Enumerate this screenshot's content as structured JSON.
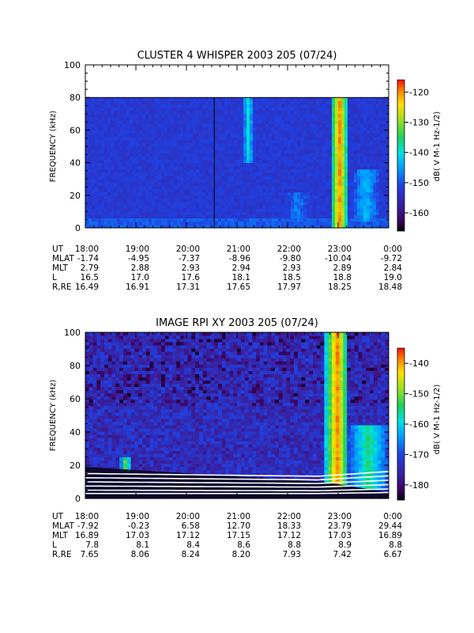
{
  "chart_data": [
    {
      "type": "heatmap",
      "title": "CLUSTER 4 WHISPER 2003 205 (07/24)",
      "ylabel": "FREQUENCY (kHz)",
      "ylim": [
        0,
        100
      ],
      "yticks": [
        0,
        20,
        40,
        60,
        80,
        100
      ],
      "x_tick_labels": [
        "18:00",
        "19:00",
        "20:00",
        "21:00",
        "22:00",
        "23:00",
        "0:00"
      ],
      "xlim_hours": [
        18,
        24
      ],
      "colorbar": {
        "label": "dB( V M⁻¹ Hz⁻¹ᐟ²)",
        "label_text": "dB( V M-1 Hz-1/2)",
        "ticks": [
          -160,
          -150,
          -140,
          -130,
          -120
        ],
        "range": [
          -166,
          -116
        ]
      },
      "data_top_khz": 80,
      "vertical_marker_hour": 20.55,
      "ephemeris": {
        "UT": [
          "18:00",
          "19:00",
          "20:00",
          "21:00",
          "22:00",
          "23:00",
          "0:00"
        ],
        "MLAT": [
          "-1.74",
          "-4.95",
          "-7.37",
          "-8.96",
          "-9.80",
          "-10.04",
          "-9.72"
        ],
        "MLT": [
          "2.79",
          "2.88",
          "2.93",
          "2.94",
          "2.93",
          "2.89",
          "2.84"
        ],
        "L": [
          "16.5",
          "17.0",
          "17.6",
          "18.1",
          "18.5",
          "18.8",
          "19.0"
        ],
        "R,RE": [
          "16.49",
          "16.91",
          "17.31",
          "17.65",
          "17.97",
          "18.25",
          "18.48"
        ]
      },
      "features": [
        {
          "desc": "intense broadband burst",
          "hours": [
            22.85,
            23.2
          ],
          "khz": [
            0,
            80
          ],
          "level_db": -120
        },
        {
          "desc": "emission patch",
          "hours": [
            23.2,
            23.9
          ],
          "khz": [
            5,
            35
          ],
          "level_db": -143
        },
        {
          "desc": "emission patch",
          "hours": [
            21.8,
            22.6
          ],
          "khz": [
            4,
            22
          ],
          "level_db": -147
        },
        {
          "desc": "bursts",
          "hours": [
            21.1,
            21.35
          ],
          "khz": [
            40,
            80
          ],
          "level_db": -140
        }
      ]
    },
    {
      "type": "heatmap",
      "title": "IMAGE RPI XY 2003 205 (07/24)",
      "ylabel": "FREQUENCY (kHz)",
      "ylim": [
        0,
        100
      ],
      "yticks": [
        0,
        20,
        40,
        60,
        80,
        100
      ],
      "x_tick_labels": [
        "18:00",
        "19:00",
        "20:00",
        "21:00",
        "22:00",
        "23:00",
        "0:00"
      ],
      "xlim_hours": [
        18,
        24
      ],
      "colorbar": {
        "label_text": "dB( V M-1 Hz-1/2)",
        "ticks": [
          -180,
          -170,
          -160,
          -150,
          -140
        ],
        "range": [
          -185,
          -135
        ]
      },
      "ephemeris": {
        "UT": [
          "18:00",
          "19:00",
          "20:00",
          "21:00",
          "22:00",
          "23:00",
          "0:00"
        ],
        "MLAT": [
          "-7.92",
          "-0.23",
          "6.58",
          "12.70",
          "18.33",
          "23.79",
          "29.44"
        ],
        "MLT": [
          "16.89",
          "17.03",
          "17.12",
          "17.15",
          "17.12",
          "17.03",
          "16.89"
        ],
        "L": [
          "7.8",
          "8.1",
          "8.4",
          "8.6",
          "8.8",
          "8.9",
          "8.8"
        ],
        "R,RE": [
          "7.65",
          "8.06",
          "8.24",
          "8.20",
          "7.93",
          "7.42",
          "6.67"
        ]
      },
      "features": [
        {
          "desc": "intense broadband burst",
          "hours": [
            22.75,
            23.2
          ],
          "khz": [
            5,
            100
          ],
          "level_db": -138
        },
        {
          "desc": "emission patch",
          "hours": [
            23.2,
            24.0
          ],
          "khz": [
            5,
            45
          ],
          "level_db": -155
        },
        {
          "desc": "low-frequency enhancement",
          "hours": [
            18.7,
            18.9
          ],
          "khz": [
            15,
            25
          ],
          "level_db": -150
        }
      ]
    }
  ]
}
